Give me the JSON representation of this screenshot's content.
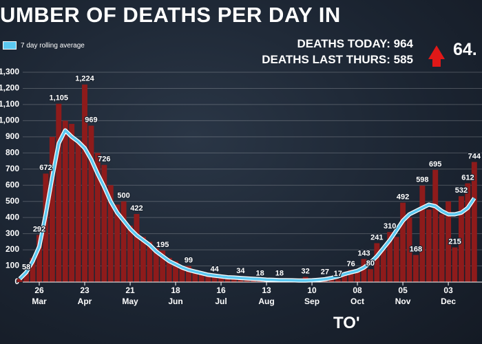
{
  "chart_data": {
    "type": "bar-line",
    "title": "UMBER OF DEATHS PER DAY IN",
    "x": [
      null,
      null,
      null,
      "26 Mar",
      null,
      null,
      null,
      null,
      null,
      null,
      "23 Apr",
      null,
      null,
      null,
      null,
      null,
      null,
      "21 May",
      null,
      null,
      null,
      null,
      null,
      null,
      "18 Jun",
      null,
      null,
      null,
      null,
      null,
      null,
      "16 Jul",
      null,
      null,
      null,
      null,
      null,
      null,
      "13 Aug",
      null,
      null,
      null,
      null,
      null,
      null,
      "10 Sep",
      null,
      null,
      null,
      null,
      null,
      null,
      "08 Oct",
      null,
      null,
      null,
      null,
      null,
      null,
      "05 Nov",
      null,
      null,
      null,
      null,
      null,
      null,
      "03 Dec",
      null,
      null,
      null,
      null
    ],
    "series": [
      {
        "type": "bar",
        "color": "#8e1b1b",
        "values": [
          20,
          58,
          150,
          292,
          672,
          900,
          1105,
          1000,
          980,
          880,
          1224,
          969,
          800,
          726,
          600,
          480,
          500,
          350,
          422,
          280,
          250,
          210,
          195,
          150,
          130,
          100,
          99,
          70,
          60,
          50,
          44,
          40,
          30,
          32,
          34,
          25,
          20,
          18,
          14,
          12,
          18,
          10,
          12,
          8,
          32,
          10,
          20,
          27,
          20,
          17,
          60,
          76,
          70,
          143,
          80,
          241,
          200,
          310,
          280,
          492,
          400,
          168,
          598,
          450,
          695,
          420,
          500,
          215,
          532,
          612,
          744
        ],
        "value_labels": [
          null,
          "58",
          null,
          "292",
          "672",
          null,
          "1,105",
          null,
          null,
          null,
          "1,224",
          "969",
          null,
          "726",
          null,
          null,
          "500",
          null,
          "422",
          null,
          null,
          null,
          "195",
          null,
          null,
          null,
          "99",
          null,
          null,
          null,
          "44",
          null,
          null,
          null,
          "34",
          null,
          null,
          "18",
          null,
          null,
          "18",
          null,
          null,
          null,
          "32",
          null,
          null,
          "27",
          null,
          "17",
          null,
          "76",
          null,
          "143",
          "80",
          "241",
          null,
          "310",
          null,
          "492",
          null,
          "168",
          "598",
          null,
          "695",
          null,
          null,
          "215",
          "532",
          "612",
          "744"
        ]
      },
      {
        "type": "line",
        "name": "7 day rolling average",
        "color": "#5bc8f0",
        "values": [
          20,
          60,
          130,
          220,
          420,
          650,
          860,
          940,
          900,
          870,
          830,
          760,
          670,
          590,
          500,
          430,
          380,
          330,
          290,
          260,
          230,
          190,
          160,
          130,
          110,
          90,
          75,
          65,
          55,
          45,
          40,
          35,
          30,
          28,
          25,
          22,
          20,
          18,
          15,
          14,
          12,
          12,
          11,
          10,
          10,
          11,
          14,
          18,
          25,
          35,
          50,
          60,
          70,
          90,
          120,
          160,
          210,
          260,
          320,
          380,
          420,
          440,
          460,
          480,
          470,
          440,
          420,
          420,
          430,
          460,
          520
        ]
      }
    ],
    "ylim": [
      0,
      1300
    ],
    "yticks": [
      0,
      100,
      200,
      300,
      400,
      500,
      600,
      700,
      800,
      900,
      {
        "value": 1000,
        "label": "1,000"
      },
      {
        "value": 1100,
        "label": "1,100"
      },
      {
        "value": 1200,
        "label": "1,200"
      },
      {
        "value": 1300,
        "label": "1,300"
      }
    ],
    "grid": true
  },
  "stats": {
    "today": "DEATHS TODAY: 964",
    "last_week": "DEATHS LAST THURS: 585",
    "change": "64."
  },
  "footer": "TO'"
}
